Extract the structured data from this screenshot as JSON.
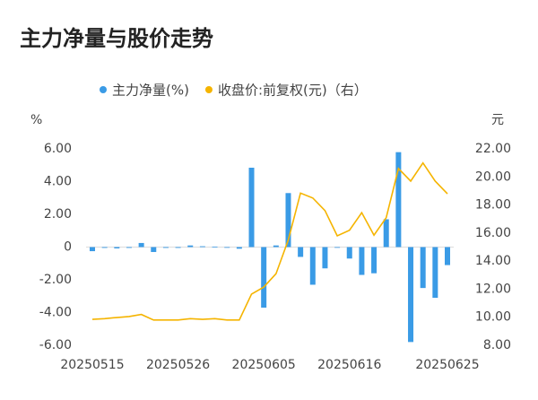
{
  "chart_data": {
    "type": "bar-line",
    "title": "主力净量与股价走势",
    "categories": [
      "20250515",
      null,
      null,
      null,
      null,
      null,
      null,
      "20250526",
      null,
      null,
      null,
      null,
      null,
      null,
      "20250605",
      null,
      null,
      null,
      null,
      null,
      null,
      "20250616",
      null,
      null,
      null,
      null,
      null,
      null,
      null,
      "20250625"
    ],
    "series": [
      {
        "name": "主力净量(%)",
        "type": "bar",
        "color": "#3a9be6",
        "values": [
          -0.25,
          -0.05,
          -0.08,
          -0.05,
          0.25,
          -0.3,
          -0.05,
          -0.05,
          0.1,
          0.05,
          0.03,
          -0.02,
          -0.1,
          4.85,
          -3.7,
          0.1,
          3.3,
          -0.6,
          -2.3,
          -1.3,
          0,
          -0.7,
          -1.7,
          -1.6,
          1.7,
          5.8,
          -5.8,
          -2.5,
          -3.1,
          -1.1
        ]
      },
      {
        "name": "收盘价:前复权(元)（右）",
        "type": "line",
        "axis": "y2",
        "color": "#f5b400",
        "values": [
          9.85,
          9.9,
          9.98,
          10.05,
          10.2,
          9.8,
          9.8,
          9.8,
          9.9,
          9.85,
          9.9,
          9.8,
          9.8,
          11.65,
          12.15,
          13.1,
          15.5,
          18.85,
          18.5,
          17.6,
          15.8,
          16.2,
          17.45,
          15.85,
          17.1,
          20.6,
          19.7,
          21.0,
          19.7,
          18.8
        ]
      }
    ],
    "y_label": "%",
    "y2_label": "元",
    "ylim": [
      -6,
      6
    ],
    "yticks": [
      {
        "value": -6,
        "label": "-6.00"
      },
      {
        "value": -4,
        "label": "-4.00"
      },
      {
        "value": -2,
        "label": "-2.00"
      },
      0,
      {
        "value": 2,
        "label": "2.00"
      },
      {
        "value": 4,
        "label": "4.00"
      },
      {
        "value": 6,
        "label": "6.00"
      }
    ],
    "y2lim": [
      8,
      22
    ],
    "y2ticks": [
      {
        "value": 8,
        "label": "8.00"
      },
      {
        "value": 10,
        "label": "10.00"
      },
      {
        "value": 12,
        "label": "12.00"
      },
      {
        "value": 14,
        "label": "14.00"
      },
      {
        "value": 16,
        "label": "16.00"
      },
      {
        "value": 18,
        "label": "18.00"
      },
      {
        "value": 20,
        "label": "20.00"
      },
      {
        "value": 22,
        "label": "22.00"
      }
    ],
    "legend": "top"
  }
}
